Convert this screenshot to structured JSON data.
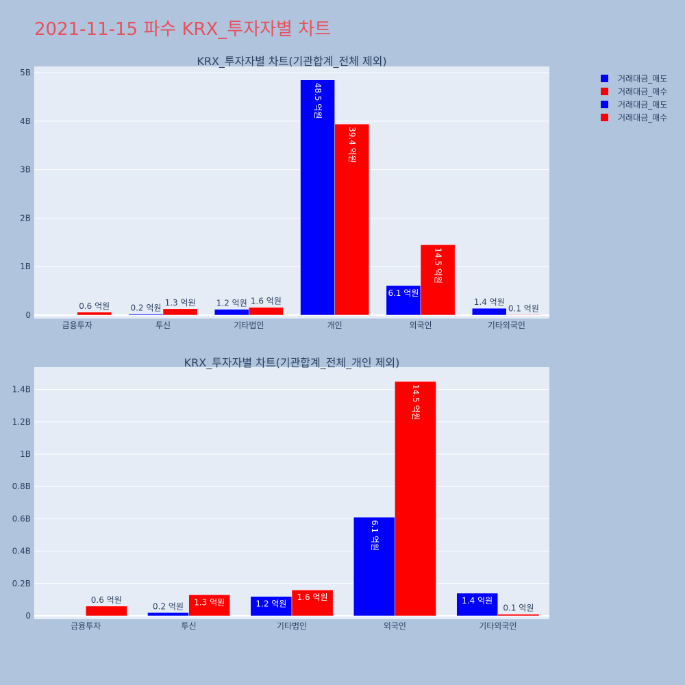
{
  "page": {
    "title": "2021-11-15 파수 KRX_투자자별 차트"
  },
  "legend": [
    {
      "label": "거래대금_매도",
      "color": "#0000ff"
    },
    {
      "label": "거래대금_매수",
      "color": "#ff0000"
    },
    {
      "label": "거래대금_매도",
      "color": "#0000ff"
    },
    {
      "label": "거래대금_매수",
      "color": "#ff0000"
    }
  ],
  "chart_data": [
    {
      "type": "bar",
      "title": "KRX_투자자별 차트(기관합계_전체 제외)",
      "categories": [
        "금융투자",
        "투신",
        "기타법인",
        "개인",
        "외국인",
        "기타외국인"
      ],
      "ylim": [
        0,
        5.1
      ],
      "yticks": [
        0,
        1,
        2,
        3,
        4,
        5
      ],
      "ytick_labels": [
        "0",
        "1B",
        "2B",
        "3B",
        "4B",
        "5B"
      ],
      "grid": true,
      "series": [
        {
          "name": "거래대금_매도",
          "color": "#0000ff",
          "values": [
            0,
            0.02,
            0.12,
            4.85,
            0.61,
            0.14
          ],
          "labels": [
            "",
            "0.2 억원",
            "1.2 억원",
            "48.5 억원",
            "6.1 억원",
            "1.4 억원"
          ]
        },
        {
          "name": "거래대금_매수",
          "color": "#ff0000",
          "values": [
            0.06,
            0.13,
            0.16,
            3.94,
            1.45,
            0.01
          ],
          "labels": [
            "0.6 억원",
            "1.3 억원",
            "1.6 억원",
            "39.4 억원",
            "14.5 억원",
            "0.1 억원"
          ]
        }
      ]
    },
    {
      "type": "bar",
      "title": "KRX_투자자별 차트(기관합계_전체_개인 제외)",
      "categories": [
        "금융투자",
        "투신",
        "기타법인",
        "외국인",
        "기타외국인"
      ],
      "ylim": [
        0,
        1.53
      ],
      "yticks": [
        0,
        0.2,
        0.4,
        0.6,
        0.8,
        1,
        1.2,
        1.4
      ],
      "ytick_labels": [
        "0",
        "0.2B",
        "0.4B",
        "0.6B",
        "0.8B",
        "1B",
        "1.2B",
        "1.4B"
      ],
      "grid": true,
      "series": [
        {
          "name": "거래대금_매도",
          "color": "#0000ff",
          "values": [
            0,
            0.02,
            0.12,
            0.61,
            0.14
          ],
          "labels": [
            "",
            "0.2 억원",
            "1.2 억원",
            "6.1 억원",
            "1.4 억원"
          ]
        },
        {
          "name": "거래대금_매수",
          "color": "#ff0000",
          "values": [
            0.06,
            0.13,
            0.16,
            1.45,
            0.01
          ],
          "labels": [
            "0.6 억원",
            "1.3 억원",
            "1.6 억원",
            "14.5 억원",
            "0.1 억원"
          ]
        }
      ]
    }
  ]
}
